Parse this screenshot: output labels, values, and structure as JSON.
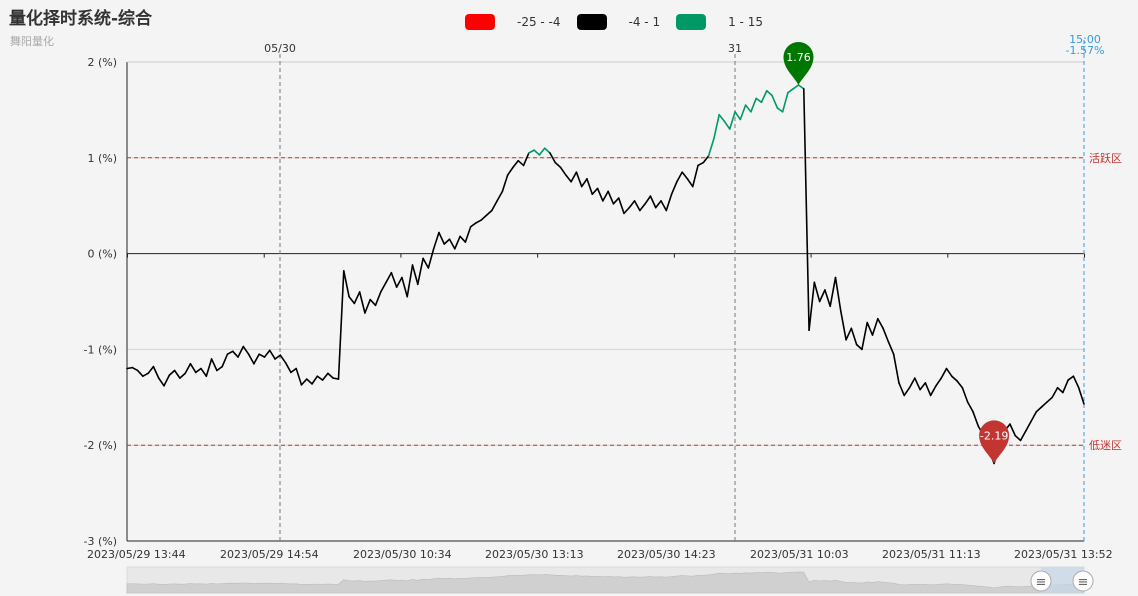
{
  "title": "量化择时系统-综合",
  "subtitle": "舞阳量化",
  "legend": [
    {
      "label": "-25 - -4",
      "color": "#ff0000"
    },
    {
      "label": "-4 - 1",
      "color": "#000000"
    },
    {
      "label": "1 - 15",
      "color": "#009966"
    }
  ],
  "chart_data": {
    "type": "line",
    "y_unit": "(%)",
    "ylim": [
      -3,
      2
    ],
    "yticks": [
      2,
      1,
      0,
      -1,
      -2,
      -3
    ],
    "ytick_labels": [
      "2 (%)",
      "1 (%)",
      "0 (%)",
      "-1 (%)",
      "-2 (%)",
      "-3 (%)"
    ],
    "xtick_labels": [
      "2023/05/29 13:44",
      "2023/05/29 14:54",
      "2023/05/30 10:34",
      "2023/05/30 13:13",
      "2023/05/30 14:23",
      "2023/05/31 10:03",
      "2023/05/31 11:13",
      "2023/05/31 13:52"
    ],
    "day_markers": [
      "05/30",
      "31"
    ],
    "reference_lines": [
      {
        "y": 1,
        "label": "活跃区",
        "color": "#c23531"
      },
      {
        "y": -2,
        "label": "低迷区",
        "color": "#c23531"
      }
    ],
    "markers": [
      {
        "label": "1.76",
        "value": 1.76,
        "color": "#007700"
      },
      {
        "label": "-2.19",
        "value": -2.19,
        "color": "#c23531"
      }
    ],
    "last_point": {
      "time": "15:00",
      "value": "-1.57%"
    },
    "grid": true,
    "series": [
      {
        "color_rule": "value > 1 green (#009966), otherwise black",
        "values": [
          -1.2,
          -1.19,
          -1.22,
          -1.28,
          -1.25,
          -1.18,
          -1.3,
          -1.38,
          -1.27,
          -1.22,
          -1.3,
          -1.25,
          -1.15,
          -1.24,
          -1.2,
          -1.28,
          -1.1,
          -1.22,
          -1.18,
          -1.05,
          -1.02,
          -1.08,
          -0.97,
          -1.05,
          -1.15,
          -1.05,
          -1.08,
          -1.01,
          -1.1,
          -1.06,
          -1.14,
          -1.24,
          -1.2,
          -1.37,
          -1.31,
          -1.36,
          -1.28,
          -1.32,
          -1.25,
          -1.3,
          -1.31,
          -0.18,
          -0.45,
          -0.52,
          -0.4,
          -0.62,
          -0.48,
          -0.54,
          -0.4,
          -0.3,
          -0.2,
          -0.35,
          -0.25,
          -0.45,
          -0.12,
          -0.32,
          -0.05,
          -0.15,
          0.05,
          0.22,
          0.1,
          0.15,
          0.05,
          0.18,
          0.12,
          0.28,
          0.32,
          0.35,
          0.4,
          0.45,
          0.55,
          0.65,
          0.82,
          0.9,
          0.97,
          0.92,
          1.05,
          1.08,
          1.03,
          1.1,
          1.05,
          0.95,
          0.9,
          0.82,
          0.75,
          0.85,
          0.7,
          0.78,
          0.62,
          0.68,
          0.55,
          0.65,
          0.52,
          0.58,
          0.42,
          0.48,
          0.55,
          0.45,
          0.52,
          0.6,
          0.48,
          0.55,
          0.45,
          0.62,
          0.75,
          0.85,
          0.78,
          0.7,
          0.92,
          0.95,
          1.02,
          1.2,
          1.45,
          1.38,
          1.3,
          1.48,
          1.4,
          1.55,
          1.48,
          1.62,
          1.58,
          1.7,
          1.65,
          1.52,
          1.48,
          1.68,
          1.72,
          1.76,
          1.72,
          -0.8,
          -0.3,
          -0.5,
          -0.38,
          -0.55,
          -0.25,
          -0.6,
          -0.9,
          -0.78,
          -0.95,
          -1.0,
          -0.72,
          -0.85,
          -0.68,
          -0.78,
          -0.92,
          -1.05,
          -1.35,
          -1.48,
          -1.4,
          -1.3,
          -1.42,
          -1.35,
          -1.48,
          -1.38,
          -1.3,
          -1.2,
          -1.28,
          -1.33,
          -1.4,
          -1.55,
          -1.65,
          -1.8,
          -1.9,
          -2.05,
          -2.19,
          -2.0,
          -1.85,
          -1.78,
          -1.9,
          -1.95,
          -1.85,
          -1.75,
          -1.65,
          -1.6,
          -1.55,
          -1.5,
          -1.4,
          -1.45,
          -1.32,
          -1.28,
          -1.4,
          -1.57
        ]
      }
    ]
  },
  "zoom_slider": {
    "handle_icon": "≡"
  }
}
